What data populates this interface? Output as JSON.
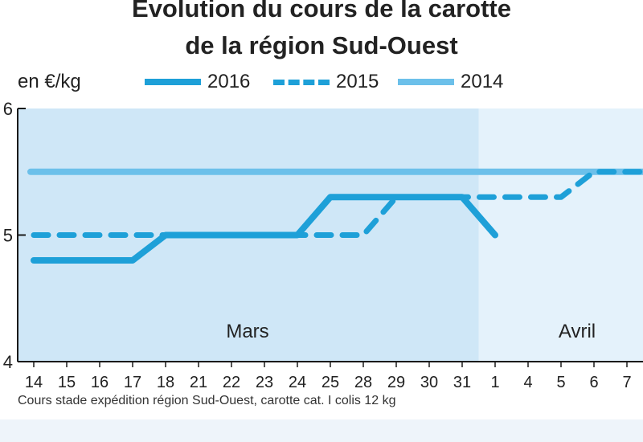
{
  "chart_data": {
    "type": "line",
    "title": "Évolution du cours de la carotte",
    "subtitle": "de la région Sud-Ouest",
    "ylabel": "en €/kg",
    "ylim": [
      4,
      6
    ],
    "yticks": [
      "6",
      "5",
      "4"
    ],
    "categories": [
      "14",
      "15",
      "16",
      "17",
      "18",
      "21",
      "22",
      "23",
      "24",
      "25",
      "28",
      "29",
      "30",
      "31",
      "1",
      "4",
      "5",
      "6",
      "7"
    ],
    "month_labels": [
      {
        "label": "Mars",
        "at": "22"
      },
      {
        "label": "Avril",
        "at": "5"
      }
    ],
    "series": [
      {
        "name": "2016",
        "style": "solid-thick",
        "color": "#1ea0d8",
        "values": [
          4.8,
          4.8,
          4.8,
          4.8,
          5.0,
          5.0,
          5.0,
          5.0,
          5.0,
          5.3,
          5.3,
          5.3,
          5.3,
          5.3,
          5.0,
          null,
          null,
          null,
          null
        ]
      },
      {
        "name": "2015",
        "style": "dashed",
        "color": "#1ea0d8",
        "values": [
          5.0,
          5.0,
          5.0,
          5.0,
          5.0,
          5.0,
          5.0,
          5.0,
          5.0,
          5.0,
          5.0,
          5.3,
          5.3,
          5.3,
          5.3,
          5.3,
          5.3,
          5.5,
          5.5
        ]
      },
      {
        "name": "2014",
        "style": "solid-light",
        "color": "#6cc0ea",
        "values": [
          5.5,
          5.5,
          5.5,
          5.5,
          5.5,
          5.5,
          5.5,
          5.5,
          5.5,
          5.5,
          5.5,
          5.5,
          5.5,
          5.5,
          5.5,
          5.5,
          5.5,
          5.5,
          5.5
        ]
      }
    ],
    "grid": false,
    "legend_position": "top"
  },
  "source_note": "Cours stade expédition région Sud-Ouest, carotte cat. I colis 12 kg",
  "colors": {
    "plot_bg_mars": "#cfe7f7",
    "plot_bg_avril": "#e4f2fb",
    "axis": "#1a1a1a"
  }
}
